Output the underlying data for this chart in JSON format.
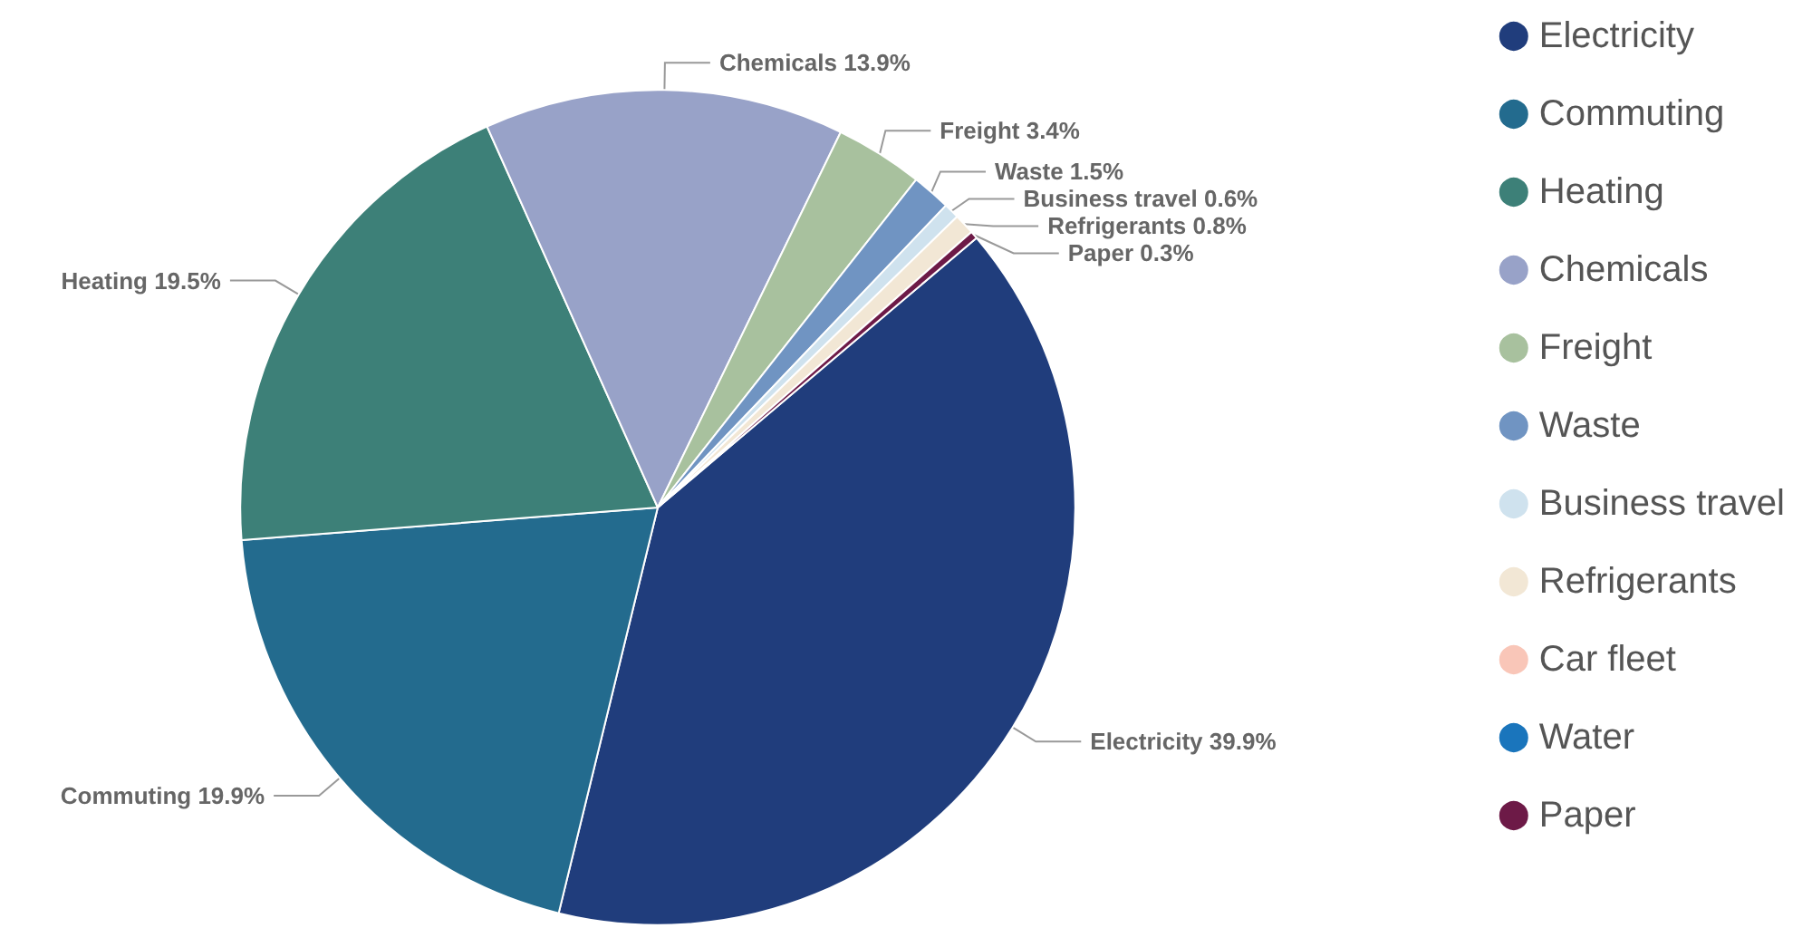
{
  "chart_data": {
    "type": "pie",
    "categories": [
      "Electricity",
      "Commuting",
      "Heating",
      "Chemicals",
      "Freight",
      "Waste",
      "Business travel",
      "Refrigerants",
      "Car fleet",
      "Water",
      "Paper"
    ],
    "values": [
      39.9,
      19.9,
      19.5,
      13.9,
      3.4,
      1.5,
      0.6,
      0.8,
      null,
      null,
      0.3
    ],
    "value_labels": [
      "39.9%",
      "19.9%",
      "19.5%",
      "13.9%",
      "3.4%",
      "1.5%",
      "0.6%",
      "0.8%",
      null,
      null,
      "0.3%"
    ],
    "colors": [
      "#203d7c",
      "#236b8e",
      "#3d8078",
      "#98a2c8",
      "#a8c19e",
      "#7094c2",
      "#cfe2ee",
      "#f2e7d5",
      "#f9c6b8",
      "#1a75bc",
      "#6d1a47"
    ],
    "legend": "right"
  }
}
